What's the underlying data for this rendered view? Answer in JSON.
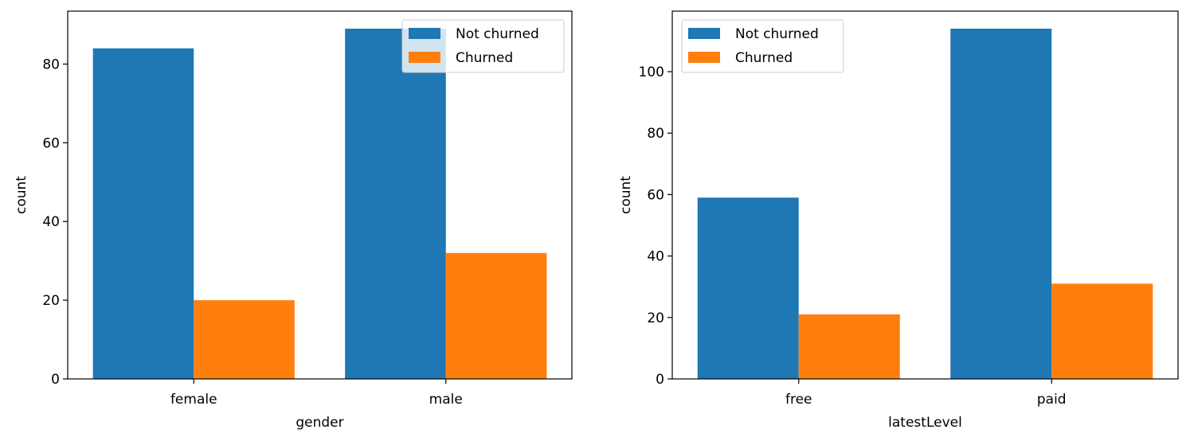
{
  "legend_location": "top-right",
  "chart_data": [
    {
      "type": "bar",
      "categories": [
        "female",
        "male"
      ],
      "series": [
        {
          "name": "Not churned",
          "color": "#1f77b4",
          "values": [
            84,
            89
          ]
        },
        {
          "name": "Churned",
          "color": "#ff7f0e",
          "values": [
            20,
            32
          ]
        }
      ],
      "xlabel": "gender",
      "ylabel": "count",
      "ylim": [
        0,
        93.45
      ],
      "yticks": [
        0,
        20,
        40,
        60,
        80
      ],
      "legend": "top-right",
      "grid": false
    },
    {
      "type": "bar",
      "categories": [
        "free",
        "paid"
      ],
      "series": [
        {
          "name": "Not churned",
          "color": "#1f77b4",
          "values": [
            59,
            114
          ]
        },
        {
          "name": "Churned",
          "color": "#ff7f0e",
          "values": [
            21,
            31
          ]
        }
      ],
      "xlabel": "latestLevel",
      "ylabel": "count",
      "ylim": [
        0,
        119.7
      ],
      "yticks": [
        0,
        20,
        40,
        60,
        80,
        100
      ],
      "legend": "top-left",
      "grid": false
    }
  ]
}
